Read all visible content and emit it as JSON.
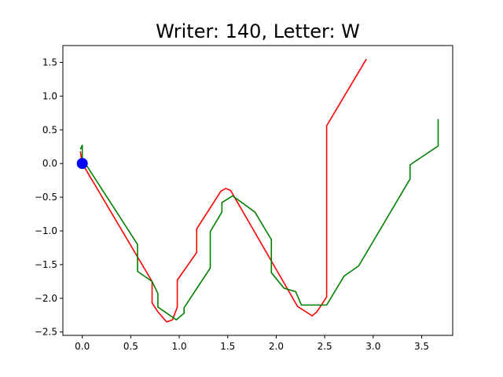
{
  "chart_data": {
    "type": "line",
    "title": "Writer: 140, Letter: W",
    "xlabel": "",
    "ylabel": "",
    "xlim": [
      -0.2,
      3.82
    ],
    "ylim": [
      -2.55,
      1.75
    ],
    "xticks": [
      0.0,
      0.5,
      1.0,
      1.5,
      2.0,
      2.5,
      3.0,
      3.5
    ],
    "xtick_labels": [
      "0.0",
      "0.5",
      "1.0",
      "1.5",
      "2.0",
      "2.5",
      "3.0",
      "3.5"
    ],
    "yticks": [
      1.5,
      1.0,
      0.5,
      0.0,
      -0.5,
      -1.0,
      -1.5,
      -2.0,
      -2.5
    ],
    "ytick_labels": [
      "1.5",
      "1.0",
      "0.5",
      "0.0",
      "−0.5",
      "−1.0",
      "−1.5",
      "−2.0",
      "−2.5"
    ],
    "grid": false,
    "legend": "none",
    "series": [
      {
        "color": "#ff0000",
        "points": [
          [
            -0.02,
            0.18
          ],
          [
            0.0,
            0.0
          ],
          [
            0.72,
            -1.75
          ],
          [
            0.72,
            -2.07
          ],
          [
            0.78,
            -2.2
          ],
          [
            0.87,
            -2.35
          ],
          [
            0.93,
            -2.32
          ],
          [
            0.98,
            -2.13
          ],
          [
            0.98,
            -1.73
          ],
          [
            1.18,
            -1.32
          ],
          [
            1.18,
            -0.97
          ],
          [
            1.43,
            -0.41
          ],
          [
            1.48,
            -0.37
          ],
          [
            1.53,
            -0.4
          ],
          [
            2.22,
            -2.12
          ],
          [
            2.37,
            -2.26
          ],
          [
            2.42,
            -2.2
          ],
          [
            2.52,
            -1.98
          ],
          [
            2.52,
            0.56
          ],
          [
            2.93,
            1.55
          ]
        ]
      },
      {
        "color": "#008000",
        "points": [
          [
            -0.02,
            0.21
          ],
          [
            0.0,
            0.27
          ],
          [
            0.0,
            0.07
          ],
          [
            0.57,
            -1.2
          ],
          [
            0.57,
            -1.6
          ],
          [
            0.72,
            -1.75
          ],
          [
            0.78,
            -1.93
          ],
          [
            0.78,
            -2.13
          ],
          [
            0.97,
            -2.32
          ],
          [
            1.05,
            -2.22
          ],
          [
            1.05,
            -2.14
          ],
          [
            1.32,
            -1.55
          ],
          [
            1.32,
            -1.01
          ],
          [
            1.44,
            -0.72
          ],
          [
            1.44,
            -0.58
          ],
          [
            1.55,
            -0.48
          ],
          [
            1.78,
            -0.72
          ],
          [
            1.95,
            -1.13
          ],
          [
            1.95,
            -1.62
          ],
          [
            2.08,
            -1.85
          ],
          [
            2.2,
            -1.9
          ],
          [
            2.26,
            -2.1
          ],
          [
            2.52,
            -2.1
          ],
          [
            2.7,
            -1.67
          ],
          [
            2.85,
            -1.52
          ],
          [
            3.38,
            -0.23
          ],
          [
            3.38,
            -0.02
          ],
          [
            3.67,
            0.26
          ],
          [
            3.67,
            0.66
          ]
        ]
      }
    ],
    "marker": {
      "x": 0.0,
      "y": 0.0,
      "color": "#0000ff"
    }
  }
}
